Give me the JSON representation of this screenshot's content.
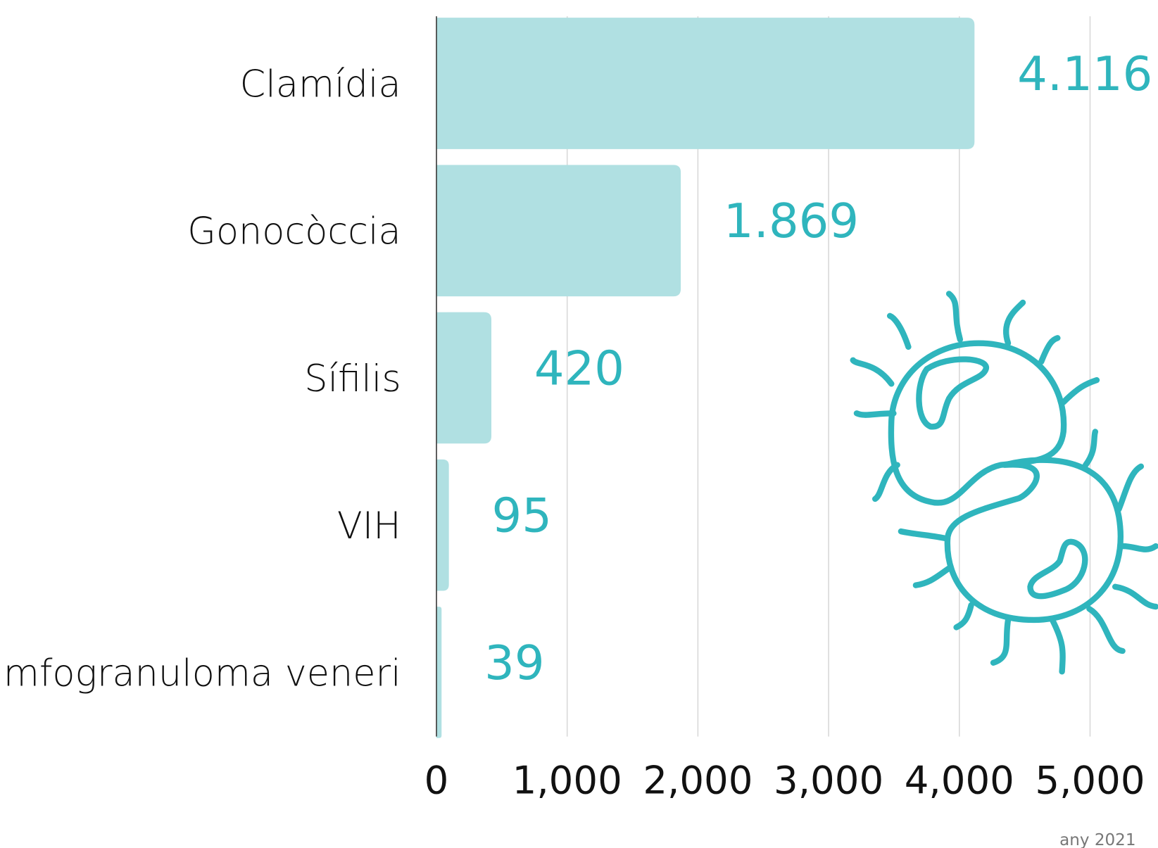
{
  "chart_data": {
    "type": "bar",
    "orientation": "horizontal",
    "categories": [
      "Clamídia",
      "Gonocòccia",
      "Sífilis",
      "VIH",
      "Limfogranuloma veneri"
    ],
    "values": [
      4116,
      1869,
      420,
      95,
      39
    ],
    "value_labels": [
      "4.116",
      "1.869",
      "420",
      "95",
      "39"
    ],
    "color": "#b0e0e2",
    "label_color": "#2fb5bd",
    "xlim": [
      0,
      5000
    ],
    "xticks": [
      0,
      {
        "value": 1000,
        "label": "1,000"
      },
      {
        "value": 2000,
        "label": "2,000"
      },
      {
        "value": 3000,
        "label": "3,000"
      },
      {
        "value": 4000,
        "label": "4,000"
      },
      {
        "value": 5000,
        "label": "5,000"
      }
    ],
    "grid": true,
    "note": "any 2021"
  }
}
